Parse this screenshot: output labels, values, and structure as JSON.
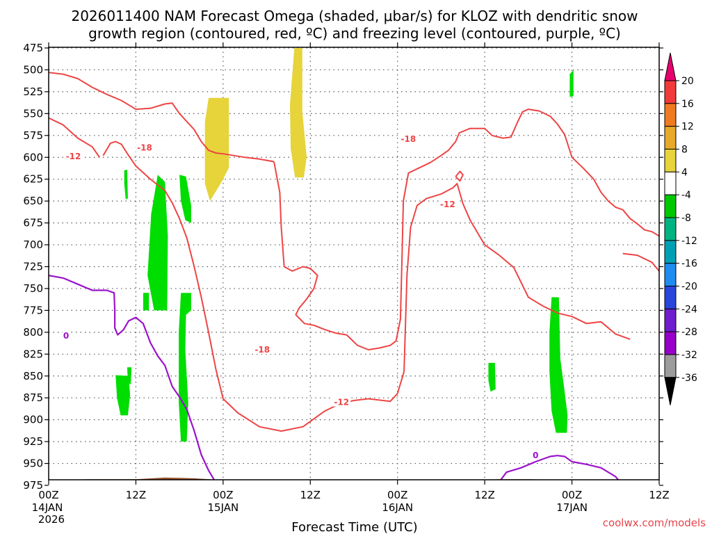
{
  "chart_data": {
    "type": "heatmap",
    "title_line1": "2026011400 NAM Forecast Omega (shaded, μbar/s) for KLOZ with dendritic snow",
    "title_line2": "growth region (contoured, red, ºC) and freezing level (contoured, purple, ºC)",
    "xlabel": "Forecast Time (UTC)",
    "credit": "coolwx.com/models",
    "x_range_hours": [
      0,
      84
    ],
    "y_range_mb": [
      475,
      980
    ],
    "y_ticks": [
      "475",
      "500",
      "525",
      "550",
      "575",
      "600",
      "625",
      "650",
      "675",
      "700",
      "725",
      "750",
      "775",
      "800",
      "825",
      "850",
      "875",
      "900",
      "925",
      "950",
      "975"
    ],
    "x_ticks": [
      {
        "hour": 0,
        "label": "00Z",
        "sub": "14JAN",
        "sub2": "2026"
      },
      {
        "hour": 12,
        "label": "12Z",
        "sub": "",
        "sub2": ""
      },
      {
        "hour": 24,
        "label": "00Z",
        "sub": "15JAN",
        "sub2": ""
      },
      {
        "hour": 36,
        "label": "12Z",
        "sub": "",
        "sub2": ""
      },
      {
        "hour": 48,
        "label": "00Z",
        "sub": "16JAN",
        "sub2": ""
      },
      {
        "hour": 60,
        "label": "12Z",
        "sub": "",
        "sub2": ""
      },
      {
        "hour": 72,
        "label": "00Z",
        "sub": "17JAN",
        "sub2": ""
      },
      {
        "hour": 84,
        "label": "12Z",
        "sub": "",
        "sub2": ""
      }
    ],
    "colorbar": {
      "labels": [
        "20",
        "16",
        "12",
        "8",
        "4",
        "-4",
        "-8",
        "-12",
        "-16",
        "-20",
        "-24",
        "-28",
        "-32",
        "-36"
      ],
      "colors": [
        "#e8006e",
        "#f23a3a",
        "#f07a20",
        "#e8a92a",
        "#e6d43a",
        "#ffffff",
        "#00c800",
        "#00b482",
        "#00a0b4",
        "#1e8cf0",
        "#2846dc",
        "#6e1ecd",
        "#9600c8",
        "#9c9c9c",
        "#000000"
      ]
    },
    "colors": {
      "ground": "#9a5430",
      "omega_pos": "#e6d43a",
      "omega_neg": "#00dd00",
      "dgz": "#ee4444",
      "freezing": "#9b12cc"
    },
    "contour_labels": [
      {
        "text": "-12",
        "x": 3.4,
        "y": 599,
        "color": "dgz"
      },
      {
        "text": "-18",
        "x": 13.2,
        "y": 589,
        "color": "dgz"
      },
      {
        "text": "-18",
        "x": 29.4,
        "y": 820,
        "color": "dgz"
      },
      {
        "text": "-12",
        "x": 40.3,
        "y": 880,
        "color": "dgz"
      },
      {
        "text": "-18",
        "x": 49.5,
        "y": 579,
        "color": "dgz"
      },
      {
        "text": "-12",
        "x": 54.9,
        "y": 654,
        "color": "dgz"
      },
      {
        "text": "0",
        "x": 2.4,
        "y": 804,
        "color": "freezing"
      },
      {
        "text": "0",
        "x": 67.0,
        "y": 941,
        "color": "freezing"
      }
    ],
    "ground": [
      [
        0,
        969
      ],
      [
        6,
        968
      ],
      [
        12,
        968
      ],
      [
        16,
        966
      ],
      [
        20,
        967
      ],
      [
        24,
        969
      ],
      [
        28,
        969
      ],
      [
        34,
        970
      ],
      [
        38,
        970
      ],
      [
        46,
        970
      ],
      [
        50,
        971
      ],
      [
        54,
        970
      ],
      [
        58,
        969
      ],
      [
        62,
        968
      ],
      [
        66,
        968
      ],
      [
        72,
        969
      ],
      [
        84,
        970
      ]
    ],
    "omega_regions": {
      "positive": [
        [
          [
            22.0,
            532
          ],
          [
            24.8,
            532
          ],
          [
            24.8,
            612
          ],
          [
            23.8,
            628
          ],
          [
            22.2,
            650
          ],
          [
            21.5,
            630
          ],
          [
            21.5,
            560
          ]
        ],
        [
          [
            33.8,
            475
          ],
          [
            34.9,
            475
          ],
          [
            34.9,
            548
          ],
          [
            35.5,
            600
          ],
          [
            35.1,
            623
          ],
          [
            33.9,
            623
          ],
          [
            33.3,
            590
          ],
          [
            33.2,
            540
          ]
        ]
      ],
      "negative": [
        [
          [
            10.4,
            615
          ],
          [
            10.8,
            614
          ],
          [
            10.9,
            647
          ],
          [
            10.6,
            648
          ],
          [
            10.4,
            630
          ]
        ],
        [
          [
            9.2,
            849
          ],
          [
            11.0,
            850
          ],
          [
            11.2,
            872
          ],
          [
            10.9,
            895
          ],
          [
            9.9,
            895
          ],
          [
            9.4,
            875
          ]
        ],
        [
          [
            10.8,
            840
          ],
          [
            11.4,
            840
          ],
          [
            11.3,
            860
          ],
          [
            10.9,
            857
          ]
        ],
        [
          [
            15.0,
            620
          ],
          [
            16.0,
            628
          ],
          [
            16.4,
            690
          ],
          [
            16.3,
            775
          ],
          [
            14.5,
            775
          ],
          [
            13.6,
            735
          ],
          [
            14.1,
            665
          ]
        ],
        [
          [
            18.0,
            620
          ],
          [
            18.9,
            622
          ],
          [
            19.6,
            655
          ],
          [
            19.6,
            675
          ],
          [
            18.8,
            672
          ],
          [
            18.2,
            650
          ]
        ],
        [
          [
            13.0,
            755
          ],
          [
            13.8,
            755
          ],
          [
            13.8,
            775
          ],
          [
            13.0,
            775
          ]
        ],
        [
          [
            18.2,
            755
          ],
          [
            19.6,
            755
          ],
          [
            19.6,
            775
          ],
          [
            18.9,
            780
          ],
          [
            18.8,
            820
          ],
          [
            19.2,
            880
          ],
          [
            19.0,
            925
          ],
          [
            18.2,
            925
          ],
          [
            17.9,
            880
          ],
          [
            17.9,
            800
          ]
        ],
        [
          [
            60.5,
            835
          ],
          [
            61.4,
            835
          ],
          [
            61.5,
            865
          ],
          [
            60.8,
            868
          ],
          [
            60.5,
            855
          ]
        ],
        [
          [
            69.2,
            760
          ],
          [
            70.2,
            760
          ],
          [
            70.4,
            830
          ],
          [
            70.9,
            862
          ],
          [
            71.4,
            895
          ],
          [
            71.3,
            915
          ],
          [
            69.8,
            915
          ],
          [
            69.2,
            890
          ],
          [
            68.9,
            845
          ],
          [
            68.9,
            800
          ]
        ],
        [
          [
            71.7,
            505
          ],
          [
            72.2,
            500
          ],
          [
            72.2,
            530
          ],
          [
            71.7,
            531
          ]
        ]
      ]
    },
    "dgz_m12_upper": [
      [
        0,
        503
      ],
      [
        2,
        505
      ],
      [
        4,
        510
      ],
      [
        6,
        520
      ],
      [
        8,
        528
      ],
      [
        10,
        535
      ],
      [
        11,
        540
      ],
      [
        12,
        545
      ],
      [
        14,
        544
      ],
      [
        16,
        539
      ],
      [
        17,
        538
      ],
      [
        18,
        550
      ],
      [
        20,
        568
      ],
      [
        21,
        582
      ],
      [
        22,
        592
      ],
      [
        23,
        595
      ],
      [
        24,
        596
      ]
    ],
    "dgz_m12_left": [
      [
        0,
        555
      ],
      [
        2,
        563
      ],
      [
        4,
        578
      ],
      [
        6,
        588
      ],
      [
        7,
        600
      ]
    ],
    "dgz_m18": [
      [
        7.5,
        598
      ],
      [
        8.5,
        584
      ],
      [
        9.2,
        582
      ],
      [
        10,
        585
      ],
      [
        11,
        598
      ],
      [
        12,
        610
      ],
      [
        14,
        625
      ],
      [
        16,
        638
      ],
      [
        17,
        652
      ],
      [
        18,
        670
      ],
      [
        19,
        692
      ],
      [
        20,
        724
      ],
      [
        21,
        760
      ],
      [
        22,
        800
      ],
      [
        23,
        842
      ],
      [
        24,
        876
      ],
      [
        26,
        892
      ],
      [
        29,
        908
      ],
      [
        32,
        913
      ],
      [
        35,
        908
      ],
      [
        38,
        890
      ],
      [
        40,
        882
      ],
      [
        42,
        878
      ],
      [
        44,
        876
      ],
      [
        46,
        878
      ],
      [
        47,
        879
      ],
      [
        48,
        870
      ],
      [
        48.9,
        845
      ],
      [
        49.1,
        790
      ],
      [
        49.3,
        735
      ],
      [
        49.8,
        680
      ],
      [
        50.7,
        655
      ],
      [
        52,
        647
      ],
      [
        54,
        642
      ],
      [
        55.6,
        635
      ],
      [
        56.2,
        630
      ],
      [
        57,
        653
      ],
      [
        58,
        672
      ],
      [
        60,
        700
      ],
      [
        62,
        712
      ],
      [
        64,
        726
      ],
      [
        66,
        760
      ],
      [
        68,
        770
      ],
      [
        70,
        778
      ],
      [
        72,
        782
      ],
      [
        74,
        790
      ],
      [
        76,
        788
      ],
      [
        78,
        802
      ],
      [
        80,
        808
      ]
    ],
    "dgz_m18_top": [
      [
        24,
        596
      ],
      [
        25.5,
        598
      ],
      [
        27,
        600
      ],
      [
        29,
        602
      ],
      [
        31,
        605
      ]
    ],
    "dgz_m18_bubble": [
      [
        31,
        605
      ],
      [
        31.8,
        640
      ],
      [
        32,
        680
      ],
      [
        32.4,
        725
      ],
      [
        33.5,
        730
      ],
      [
        35,
        725
      ],
      [
        36,
        727
      ],
      [
        37,
        735
      ],
      [
        36.5,
        750
      ],
      [
        35.5,
        762
      ],
      [
        34.5,
        772
      ],
      [
        34,
        780
      ],
      [
        35.2,
        790
      ],
      [
        36.5,
        792
      ],
      [
        38,
        797
      ],
      [
        39.5,
        801
      ],
      [
        41,
        803
      ],
      [
        42.5,
        815
      ],
      [
        44,
        820
      ],
      [
        45.5,
        818
      ],
      [
        47,
        815
      ],
      [
        47.8,
        810
      ],
      [
        48.4,
        785
      ],
      [
        48.6,
        720
      ],
      [
        48.8,
        650
      ],
      [
        49.5,
        618
      ],
      [
        51,
        612
      ],
      [
        52.5,
        606
      ],
      [
        54,
        598
      ],
      [
        55,
        592
      ],
      [
        56,
        582
      ],
      [
        56.5,
        572
      ],
      [
        58,
        567
      ],
      [
        60,
        567
      ],
      [
        61,
        575
      ],
      [
        62.5,
        578
      ],
      [
        63.6,
        577
      ],
      [
        64.5,
        560
      ],
      [
        65.2,
        548
      ],
      [
        66,
        545
      ],
      [
        67.5,
        547
      ],
      [
        69,
        553
      ],
      [
        70,
        562
      ],
      [
        71,
        574
      ],
      [
        72,
        600
      ],
      [
        73.5,
        612
      ],
      [
        75,
        625
      ],
      [
        76,
        640
      ],
      [
        77,
        650
      ],
      [
        78,
        657
      ],
      [
        79,
        660
      ],
      [
        80,
        670
      ],
      [
        81,
        676
      ],
      [
        82,
        683
      ],
      [
        83,
        685
      ],
      [
        84,
        690
      ]
    ],
    "dgz_small_loop": [
      [
        56,
        622
      ],
      [
        56.6,
        616
      ],
      [
        57,
        620
      ],
      [
        56.6,
        627
      ],
      [
        56,
        622
      ]
    ],
    "dgz_right_upper": [
      [
        79,
        710
      ],
      [
        81,
        712
      ],
      [
        83,
        720
      ],
      [
        84,
        730
      ]
    ],
    "freezing_left": [
      [
        0,
        735
      ],
      [
        2,
        738
      ],
      [
        4,
        745
      ],
      [
        6,
        752
      ],
      [
        8,
        752
      ],
      [
        9,
        755
      ],
      [
        9.1,
        775
      ],
      [
        9.1,
        795
      ],
      [
        9.5,
        803
      ],
      [
        10.3,
        797
      ],
      [
        11,
        787
      ],
      [
        12,
        783
      ],
      [
        13,
        790
      ],
      [
        14,
        812
      ],
      [
        15,
        827
      ],
      [
        16,
        838
      ],
      [
        17,
        862
      ],
      [
        18,
        874
      ],
      [
        19,
        888
      ],
      [
        20,
        912
      ],
      [
        21,
        940
      ],
      [
        22,
        958
      ],
      [
        23,
        972
      ]
    ],
    "freezing_right": [
      [
        62,
        971
      ],
      [
        63,
        960
      ],
      [
        65,
        955
      ],
      [
        67,
        948
      ],
      [
        69,
        942
      ],
      [
        70,
        941
      ],
      [
        71,
        942
      ],
      [
        72,
        948
      ],
      [
        74,
        951
      ],
      [
        76,
        955
      ],
      [
        78,
        965
      ],
      [
        79,
        975
      ]
    ]
  }
}
